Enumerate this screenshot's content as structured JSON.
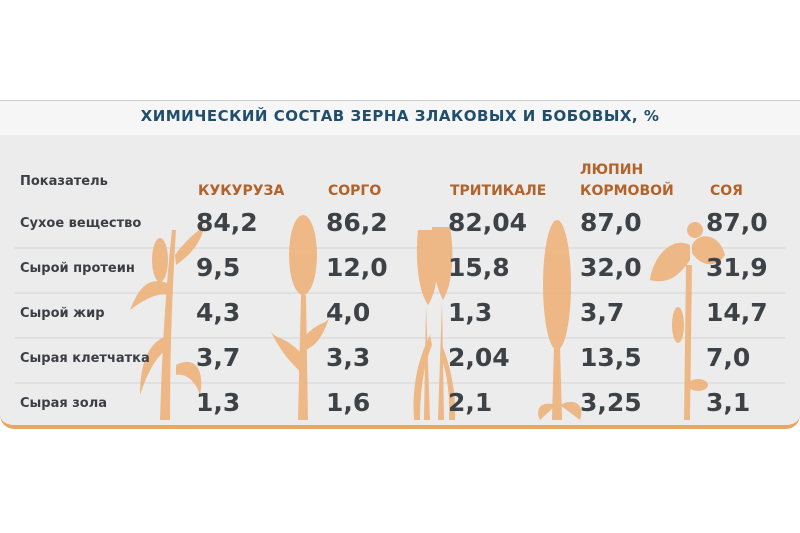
{
  "title": "ХИМИЧЕСКИЙ СОСТАВ ЗЕРНА ЗЛАКОВЫХ И БОБОВЫХ, %",
  "table": {
    "header": [
      "Показатель",
      "КУКУРУЗА",
      "СОРГО",
      "ТРИТИКАЛЕ",
      "ЛЮПИН КОРМОВОЙ",
      "СОЯ"
    ],
    "rows": [
      [
        "Сухое вещество",
        "84,2",
        "86,2",
        "82,04",
        "87,0",
        "87,0"
      ],
      [
        "Сырой протеин",
        "9,5",
        "12,0",
        "15,8",
        "32,0",
        "31,9"
      ],
      [
        "Сырой жир",
        "4,3",
        "4,0",
        "1,3",
        "3,7",
        "14,7"
      ],
      [
        "Сырая клетчатка",
        "3,7",
        "3,3",
        "2,04",
        "13,5",
        "7,0"
      ],
      [
        "Сырая зола",
        "1,3",
        "1,6",
        "2,1",
        "3,25",
        "3,1"
      ]
    ]
  }
}
